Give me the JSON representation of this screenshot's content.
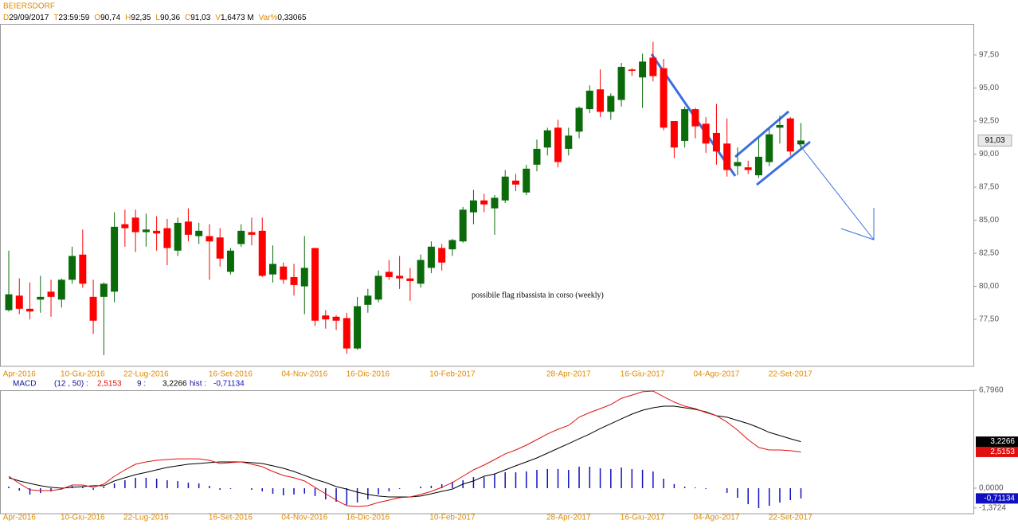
{
  "header": {
    "symbol": "BEIERSDORF",
    "fields": [
      {
        "key": "D",
        "value": "29/09/2017"
      },
      {
        "key": "T",
        "value": "23:59:59"
      },
      {
        "key": "O",
        "value": "90,74"
      },
      {
        "key": "H",
        "value": "92,35"
      },
      {
        "key": "L",
        "value": "90,36"
      },
      {
        "key": "C",
        "value": "91,03"
      },
      {
        "key": "V",
        "value": "1,6473 M"
      },
      {
        "key": "Var%",
        "value": "0,33065"
      }
    ]
  },
  "chart_data": [
    {
      "type": "candlestick",
      "up_color": "#0b6b0b",
      "down_color": "#ff0000",
      "categories": [
        null,
        "Apr-2016",
        null,
        null,
        null,
        null,
        null,
        "10-Giu-2016",
        null,
        null,
        null,
        null,
        null,
        "22-Lug-2016",
        null,
        null,
        null,
        null,
        null,
        null,
        null,
        "16-Set-2016",
        null,
        null,
        null,
        null,
        null,
        null,
        "04-Nov-2016",
        null,
        null,
        null,
        null,
        null,
        "16-Dic-2016",
        null,
        null,
        null,
        null,
        null,
        null,
        null,
        "10-Feb-2017",
        null,
        null,
        null,
        null,
        null,
        null,
        null,
        null,
        null,
        null,
        "28-Apr-2017",
        null,
        null,
        null,
        null,
        null,
        null,
        "16-Giu-2017",
        null,
        null,
        null,
        null,
        null,
        null,
        "04-Ago-2017",
        null,
        null,
        null,
        null,
        null,
        null,
        "22-Set-2017",
        null
      ],
      "open": [
        78.2,
        79.3,
        78.3,
        79.0,
        79.6,
        79.0,
        80.5,
        82.4,
        79.2,
        79.2,
        79.6,
        84.7,
        85.2,
        84.1,
        84.2,
        84.4,
        82.7,
        84.9,
        83.8,
        83.8,
        83.7,
        81.1,
        83.2,
        84.1,
        84.2,
        80.9,
        81.5,
        80.7,
        80.0,
        82.9,
        77.8,
        77.7,
        77.6,
        75.3,
        78.6,
        79.0,
        81.1,
        80.8,
        80.6,
        80.2,
        81.4,
        82.9,
        82.8,
        83.4,
        85.6,
        86.5,
        85.9,
        86.5,
        88.0,
        87.1,
        89.2,
        90.5,
        92.0,
        90.4,
        91.7,
        93.4,
        94.9,
        93.2,
        94.1,
        96.4,
        95.8,
        97.3,
        96.5,
        92.5,
        91.0,
        93.4,
        92.3,
        91.6,
        90.8,
        89.1,
        89.0,
        88.4,
        89.4,
        92.0,
        92.7,
        90.74
      ],
      "high": [
        82.7,
        80.6,
        80.3,
        80.8,
        80.5,
        80.6,
        83.0,
        84.3,
        80.5,
        80.3,
        85.6,
        85.8,
        85.8,
        85.5,
        85.3,
        85.1,
        85.2,
        85.9,
        84.8,
        84.7,
        84.4,
        82.9,
        84.7,
        85.2,
        85.2,
        83.1,
        81.8,
        81.7,
        83.8,
        82.9,
        78.2,
        77.8,
        78.0,
        79.2,
        79.8,
        81.2,
        82.0,
        82.3,
        81.4,
        82.4,
        83.4,
        83.2,
        83.6,
        86.0,
        87.3,
        87.0,
        86.9,
        88.8,
        88.5,
        89.2,
        91.1,
        92.0,
        92.6,
        92.0,
        93.6,
        95.2,
        96.4,
        94.6,
        96.9,
        96.5,
        97.6,
        98.5,
        97.2,
        92.5,
        93.6,
        93.5,
        92.8,
        93.8,
        92.7,
        90.5,
        89.5,
        91.2,
        91.9,
        92.9,
        92.8,
        92.35
      ],
      "low": [
        78.1,
        77.9,
        77.5,
        78.0,
        77.7,
        78.4,
        80.2,
        79.9,
        76.4,
        74.8,
        78.8,
        83.0,
        82.6,
        83.0,
        82.7,
        81.6,
        82.3,
        83.4,
        83.2,
        80.5,
        81.5,
        80.9,
        83.0,
        83.1,
        80.7,
        80.3,
        80.2,
        79.3,
        77.9,
        77.0,
        76.8,
        76.7,
        74.9,
        75.2,
        78.0,
        78.8,
        80.5,
        79.8,
        78.9,
        79.9,
        81.0,
        81.2,
        82.3,
        83.3,
        84.7,
        85.6,
        83.9,
        86.3,
        87.2,
        86.9,
        88.7,
        89.9,
        89.0,
        89.9,
        91.2,
        93.1,
        92.8,
        92.6,
        93.6,
        95.9,
        93.5,
        95.5,
        91.8,
        89.7,
        90.5,
        91.2,
        90.1,
        89.2,
        88.3,
        88.4,
        88.5,
        88.2,
        89.1,
        90.8,
        89.9,
        90.36
      ],
      "close": [
        79.4,
        78.3,
        78.1,
        79.2,
        79.2,
        80.5,
        82.3,
        80.2,
        77.4,
        80.2,
        84.5,
        84.4,
        84.1,
        84.3,
        84.0,
        82.9,
        84.8,
        83.9,
        84.2,
        83.4,
        82.1,
        82.7,
        84.2,
        83.9,
        80.8,
        81.7,
        80.5,
        80.1,
        81.4,
        77.4,
        77.5,
        77.4,
        75.3,
        78.5,
        79.3,
        80.8,
        80.7,
        80.6,
        80.4,
        82.0,
        83.0,
        81.8,
        83.5,
        85.8,
        86.5,
        86.2,
        86.7,
        88.3,
        87.7,
        88.9,
        90.4,
        91.8,
        89.4,
        91.4,
        93.5,
        94.8,
        93.2,
        94.4,
        96.6,
        96.3,
        97.0,
        95.9,
        92.0,
        90.5,
        93.4,
        92.1,
        90.8,
        90.2,
        88.8,
        89.4,
        88.8,
        89.8,
        91.5,
        92.2,
        90.2,
        91.03
      ],
      "ylim": [
        73.95,
        99.85
      ],
      "yticks": [
        {
          "value": 77.5,
          "label": "77,50"
        },
        {
          "value": 80,
          "label": "80,00"
        },
        {
          "value": 82.5,
          "label": "82,50"
        },
        {
          "value": 85,
          "label": "85,00"
        },
        {
          "value": 87.5,
          "label": "87,50"
        },
        {
          "value": 90,
          "label": "90,00"
        },
        {
          "value": 92.5,
          "label": "92,50"
        },
        {
          "value": 95,
          "label": "95,00"
        },
        {
          "value": 97.5,
          "label": "97,50"
        }
      ],
      "last_price": {
        "value": 91.03,
        "label": "91,03"
      },
      "annotation": "possibile flag ribassista in corso (weekly)"
    },
    {
      "type": "macd",
      "title": "MACD",
      "params": "(12 , 50) :",
      "signal_params": "9 :",
      "hist_title": "hist :",
      "series": [
        {
          "color": "#e01010",
          "values": [
            0.83,
            0.33,
            -0.11,
            -0.17,
            -0.17,
            -0.06,
            0.22,
            0.22,
            0.06,
            0.28,
            0.83,
            1.27,
            1.66,
            1.82,
            1.93,
            1.99,
            2.04,
            2.04,
            2.04,
            1.93,
            1.71,
            1.77,
            1.82,
            1.66,
            1.49,
            1.16,
            0.88,
            0.72,
            0.5,
            0.06,
            -0.39,
            -0.83,
            -1.22,
            -1.27,
            -1.22,
            -0.99,
            -0.83,
            -0.66,
            -0.61,
            -0.44,
            -0.22,
            0.06,
            0.39,
            0.83,
            1.27,
            1.6,
            1.99,
            2.38,
            2.65,
            2.98,
            3.37,
            3.76,
            4.09,
            4.36,
            4.92,
            5.25,
            5.52,
            5.8,
            6.24,
            6.46,
            6.69,
            6.74,
            6.35,
            5.97,
            5.69,
            5.52,
            5.25,
            5.03,
            4.59,
            4.03,
            3.37,
            2.82,
            2.65,
            2.65,
            2.6,
            2.5153
          ],
          "value_labels": "2,5153"
        },
        {
          "color": "#000000",
          "values": [
            0.72,
            0.5,
            0.33,
            0.17,
            0.06,
            0.0,
            0.06,
            0.11,
            0.17,
            0.17,
            0.5,
            0.72,
            0.94,
            1.1,
            1.27,
            1.44,
            1.55,
            1.66,
            1.71,
            1.77,
            1.82,
            1.82,
            1.82,
            1.77,
            1.71,
            1.55,
            1.38,
            1.16,
            0.88,
            0.61,
            0.39,
            0.11,
            -0.06,
            -0.28,
            -0.44,
            -0.55,
            -0.61,
            -0.61,
            -0.61,
            -0.55,
            -0.39,
            -0.22,
            -0.06,
            0.28,
            0.5,
            0.83,
            0.99,
            1.27,
            1.55,
            1.82,
            2.1,
            2.43,
            2.76,
            3.09,
            3.43,
            3.76,
            4.14,
            4.47,
            4.81,
            5.14,
            5.41,
            5.58,
            5.69,
            5.69,
            5.58,
            5.47,
            5.3,
            5.03,
            4.92,
            4.7,
            4.48,
            4.2,
            3.87,
            3.65,
            3.43,
            3.2266
          ],
          "value_labels": "3,2266"
        },
        {
          "color": "#1010c0",
          "values": [
            0.11,
            -0.17,
            -0.44,
            -0.34,
            -0.23,
            -0.06,
            0.16,
            0.11,
            -0.11,
            0.11,
            0.33,
            0.55,
            0.72,
            0.72,
            0.66,
            0.55,
            0.49,
            0.38,
            0.33,
            0.16,
            -0.11,
            -0.05,
            0.0,
            -0.11,
            -0.22,
            -0.39,
            -0.5,
            -0.44,
            -0.38,
            -0.55,
            -0.78,
            -0.94,
            -1.16,
            -0.99,
            -0.78,
            -0.44,
            -0.22,
            -0.05,
            0.0,
            0.11,
            0.17,
            0.28,
            0.45,
            0.55,
            0.77,
            0.77,
            1.0,
            1.11,
            1.1,
            1.16,
            1.27,
            1.33,
            1.33,
            1.27,
            1.49,
            1.49,
            1.38,
            1.33,
            1.43,
            1.32,
            1.28,
            1.16,
            0.66,
            0.28,
            0.11,
            0.05,
            -0.05,
            0.0,
            -0.33,
            -0.67,
            -1.11,
            -1.38,
            -1.22,
            -1.0,
            -0.83,
            -0.71134
          ],
          "value_labels": "-0,71134"
        }
      ],
      "ylim": [
        -1.77,
        6.796
      ],
      "yticks": [
        {
          "value": 6.796,
          "label": "6,7960"
        },
        {
          "value": 0,
          "label": "0,0000"
        },
        {
          "value": -1.3724,
          "label": "-1,3724"
        }
      ]
    }
  ]
}
